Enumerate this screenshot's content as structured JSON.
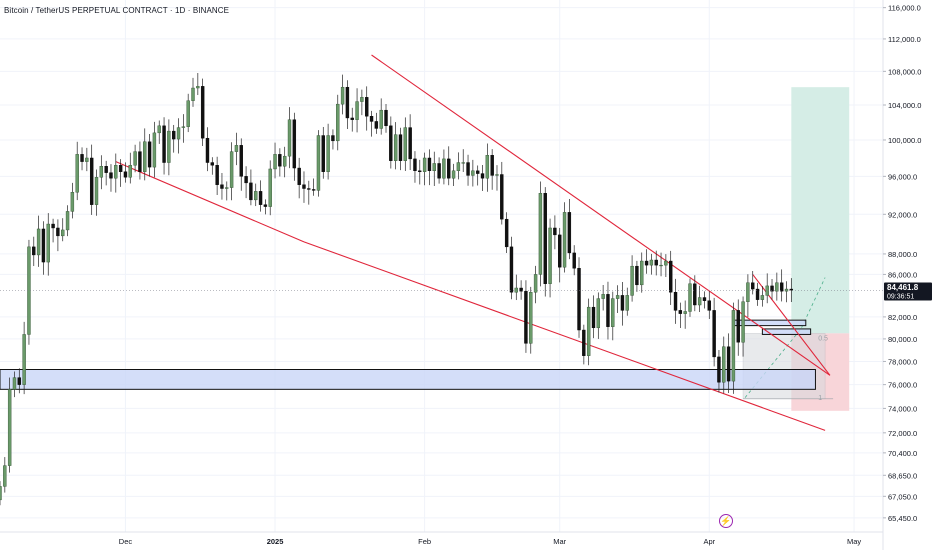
{
  "title": "Bitcoin / TetherUS PERPETUAL CONTRACT · 1D · BINANCE",
  "colors": {
    "up": "#6a9a6a",
    "down": "#111111",
    "trendline": "#e0263b",
    "zone_fill": "#c9d6f7",
    "zone_stroke": "#111111",
    "target_fill": "#d3ece5",
    "stop_fill": "#f8d3d7",
    "price_label_bg": "#131722",
    "grid": "#f0f3fa"
  },
  "price_label": {
    "price": "84,461.8",
    "countdown": "09:36:51"
  },
  "fib_labels": [
    "0.5",
    "1"
  ],
  "icons": {
    "alert": "lightning-bolt-icon"
  },
  "chart_data": {
    "type": "candlestick",
    "y_scale": "log",
    "ylim": [
      65000,
      117000
    ],
    "x_start": "2024-11-05",
    "x_end": "2025-05-07",
    "x_ticks": [
      {
        "label": "Dec",
        "date": "2024-12-01"
      },
      {
        "label": "2025",
        "date": "2025-01-01"
      },
      {
        "label": "Feb",
        "date": "2025-02-01"
      },
      {
        "label": "Mar",
        "date": "2025-03-01"
      },
      {
        "label": "Apr",
        "date": "2025-04-01"
      },
      {
        "label": "May",
        "date": "2025-05-01"
      }
    ],
    "y_ticks": [
      {
        "label": "116,000.0",
        "value": 116000
      },
      {
        "label": "112,000.0",
        "value": 112000
      },
      {
        "label": "108,000.0",
        "value": 108000
      },
      {
        "label": "104,000.0",
        "value": 104000
      },
      {
        "label": "100,000.0",
        "value": 100000
      },
      {
        "label": "96,000.0",
        "value": 96000
      },
      {
        "label": "92,000.0",
        "value": 92000
      },
      {
        "label": "88,000.0",
        "value": 88000
      },
      {
        "label": "86,000.0",
        "value": 86000
      },
      {
        "label": "82,000.0",
        "value": 82000
      },
      {
        "label": "80,000.0",
        "value": 80000
      },
      {
        "label": "78,000.0",
        "value": 78000
      },
      {
        "label": "76,000.0",
        "value": 76000
      },
      {
        "label": "74,000.0",
        "value": 74000
      },
      {
        "label": "72,000.0",
        "value": 72000
      },
      {
        "label": "70,400.0",
        "value": 70400
      },
      {
        "label": "68,650.0",
        "value": 68650
      },
      {
        "label": "67,050.0",
        "value": 67050
      },
      {
        "label": "65,450.0",
        "value": 65450
      }
    ],
    "last_price": 84461.8,
    "closes": [
      67800,
      69400,
      75600,
      76600,
      76000,
      80400,
      88700,
      87900,
      90500,
      87200,
      91000,
      90600,
      89800,
      90400,
      92300,
      94300,
      98400,
      97600,
      98000,
      93000,
      95900,
      97100,
      96400,
      95800,
      97200,
      96500,
      95900,
      97200,
      98700,
      96500,
      99800,
      97000,
      100800,
      101600,
      97500,
      101000,
      100100,
      101400,
      101500,
      104500,
      106000,
      106200,
      100200,
      97500,
      97200,
      95100,
      94700,
      94800,
      98700,
      99400,
      96000,
      95300,
      93500,
      94400,
      93000,
      92800,
      96800,
      98400,
      97100,
      98200,
      102300,
      96900,
      95100,
      94700,
      94600,
      94500,
      100500,
      96500,
      100500,
      99900,
      104100,
      106100,
      102500,
      102300,
      104400,
      104900,
      102700,
      102100,
      101300,
      103400,
      101600,
      97700,
      100600,
      97700,
      101400,
      97900,
      96600,
      96500,
      98000,
      96600,
      97400,
      95800,
      97900,
      95800,
      96600,
      97500,
      97500,
      96100,
      96600,
      96300,
      95800,
      98300,
      96100,
      96200,
      91500,
      88700,
      84300,
      84700,
      84400,
      79600,
      84300,
      86000,
      94200,
      85100,
      90600,
      89900,
      86700,
      92200,
      88100,
      86600,
      80800,
      78500,
      82900,
      81000,
      83700,
      84100,
      81100,
      83700,
      84000,
      82600,
      84000,
      86800,
      85000,
      87300,
      86900,
      87400,
      86900,
      86900,
      87300,
      84300,
      82600,
      82300,
      82500,
      85100,
      83100,
      83800,
      83500,
      82600,
      78400,
      76200,
      79300,
      76300,
      82600,
      79700,
      83400,
      85200,
      84600,
      83600,
      84000,
      84900,
      84400,
      85200,
      84400,
      84600,
      84500
    ],
    "trendlines": [
      {
        "start": {
          "date": "2024-11-29",
          "price": 97600
        },
        "end": {
          "date": "2025-01-07",
          "price": 89200
        }
      },
      {
        "start": {
          "date": "2025-01-07",
          "price": 89200
        },
        "end": {
          "date": "2025-04-25",
          "price": 72200
        }
      },
      {
        "start": {
          "date": "2025-01-21",
          "price": 110000
        },
        "end": {
          "date": "2025-04-26",
          "price": 76800
        }
      },
      {
        "start": {
          "date": "2025-04-10",
          "price": 86000
        },
        "end": {
          "date": "2025-04-26",
          "price": 76800
        }
      }
    ],
    "zones": [
      {
        "date_start": "2024-11-05",
        "date_end": "2025-04-23",
        "top": 77300,
        "bottom": 75600
      },
      {
        "date_start": "2025-04-06",
        "date_end": "2025-04-21",
        "top": 81700,
        "bottom": 81200
      },
      {
        "date_start": "2025-04-12",
        "date_end": "2025-04-22",
        "top": 80900,
        "bottom": 80400
      }
    ],
    "risk_reward": {
      "date_start": "2025-04-18",
      "date_end": "2025-04-30",
      "entry": 80500,
      "target": 106100,
      "stop": 73800
    },
    "fib_box": {
      "date_start": "2025-04-08",
      "date_end": "2025-04-25",
      "top": 80500,
      "bottom": 74800
    }
  }
}
